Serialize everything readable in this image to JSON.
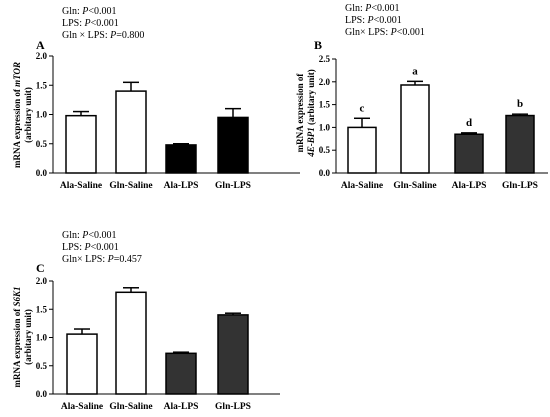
{
  "chart_data": [
    {
      "type": "bar",
      "panel_label": "A",
      "stats": [
        {
          "factor": "Gln: ",
          "p": "P",
          "val": "<0.001"
        },
        {
          "factor": "LPS: ",
          "p": "P",
          "val": "<0.001"
        },
        {
          "factor": "Gln × LPS: ",
          "p": "P",
          "val": "=0.800"
        }
      ],
      "ylabel_line1_prefix": "mRNA expression of ",
      "ylabel_gene": "mTOR",
      "ylabel_line2": "(arbitary unit)",
      "categories": [
        "Ala-Saline",
        "Gln-Saline",
        "Ala-LPS",
        "Gln-LPS"
      ],
      "values": [
        0.98,
        1.4,
        0.48,
        0.95
      ],
      "errors": [
        0.07,
        0.15,
        0.02,
        0.15
      ],
      "fills": [
        "#ffffff",
        "#ffffff",
        "#000000",
        "#000000"
      ],
      "letters": [],
      "ylim": [
        0,
        2.0
      ],
      "yticks": [
        "0.0",
        "0.5",
        "1.0",
        "1.5",
        "2.0"
      ]
    },
    {
      "type": "bar",
      "panel_label": "B",
      "stats": [
        {
          "factor": "Gln: ",
          "p": "P",
          "val": "<0.001"
        },
        {
          "factor": "LPS: ",
          "p": "P",
          "val": "<0.001"
        },
        {
          "factor": "Gln× LPS: ",
          "p": "P",
          "val": "<0.001"
        }
      ],
      "ylabel_line1": "mRNA expression of",
      "ylabel_gene": "4E-BP1",
      "ylabel_line2_suffix": " (arbitary unit)",
      "categories": [
        "Ala-Saline",
        "Gln-Saline",
        "Ala-LPS",
        "Gln-LPS"
      ],
      "values": [
        1.0,
        1.93,
        0.85,
        1.26
      ],
      "errors": [
        0.2,
        0.08,
        0.03,
        0.03
      ],
      "fills": [
        "#ffffff",
        "#ffffff",
        "#333333",
        "#333333"
      ],
      "letters": [
        "c",
        "a",
        "d",
        "b"
      ],
      "ylim": [
        0,
        2.5
      ],
      "yticks": [
        "0.0",
        "0.5",
        "1.0",
        "1.5",
        "2.0",
        "2.5"
      ]
    },
    {
      "type": "bar",
      "panel_label": "C",
      "stats": [
        {
          "factor": "Gln: ",
          "p": "P",
          "val": "<0.001"
        },
        {
          "factor": "LPS: ",
          "p": "P",
          "val": "<0.001"
        },
        {
          "factor": "Gln× LPS: ",
          "p": "P",
          "val": "=0.457"
        }
      ],
      "ylabel_line1_prefix": "mRNA expression of ",
      "ylabel_gene": "S6K1",
      "ylabel_line2": "(arbitary unit)",
      "categories": [
        "Ala-Saline",
        "Gln-Saline",
        "Ala-LPS",
        "Gln-LPS"
      ],
      "values": [
        1.06,
        1.8,
        0.72,
        1.4
      ],
      "errors": [
        0.09,
        0.08,
        0.02,
        0.03
      ],
      "fills": [
        "#ffffff",
        "#ffffff",
        "#333333",
        "#333333"
      ],
      "letters": [],
      "ylim": [
        0,
        2.0
      ],
      "yticks": [
        "0.0",
        "0.5",
        "1.0",
        "1.5",
        "2.0"
      ]
    }
  ]
}
